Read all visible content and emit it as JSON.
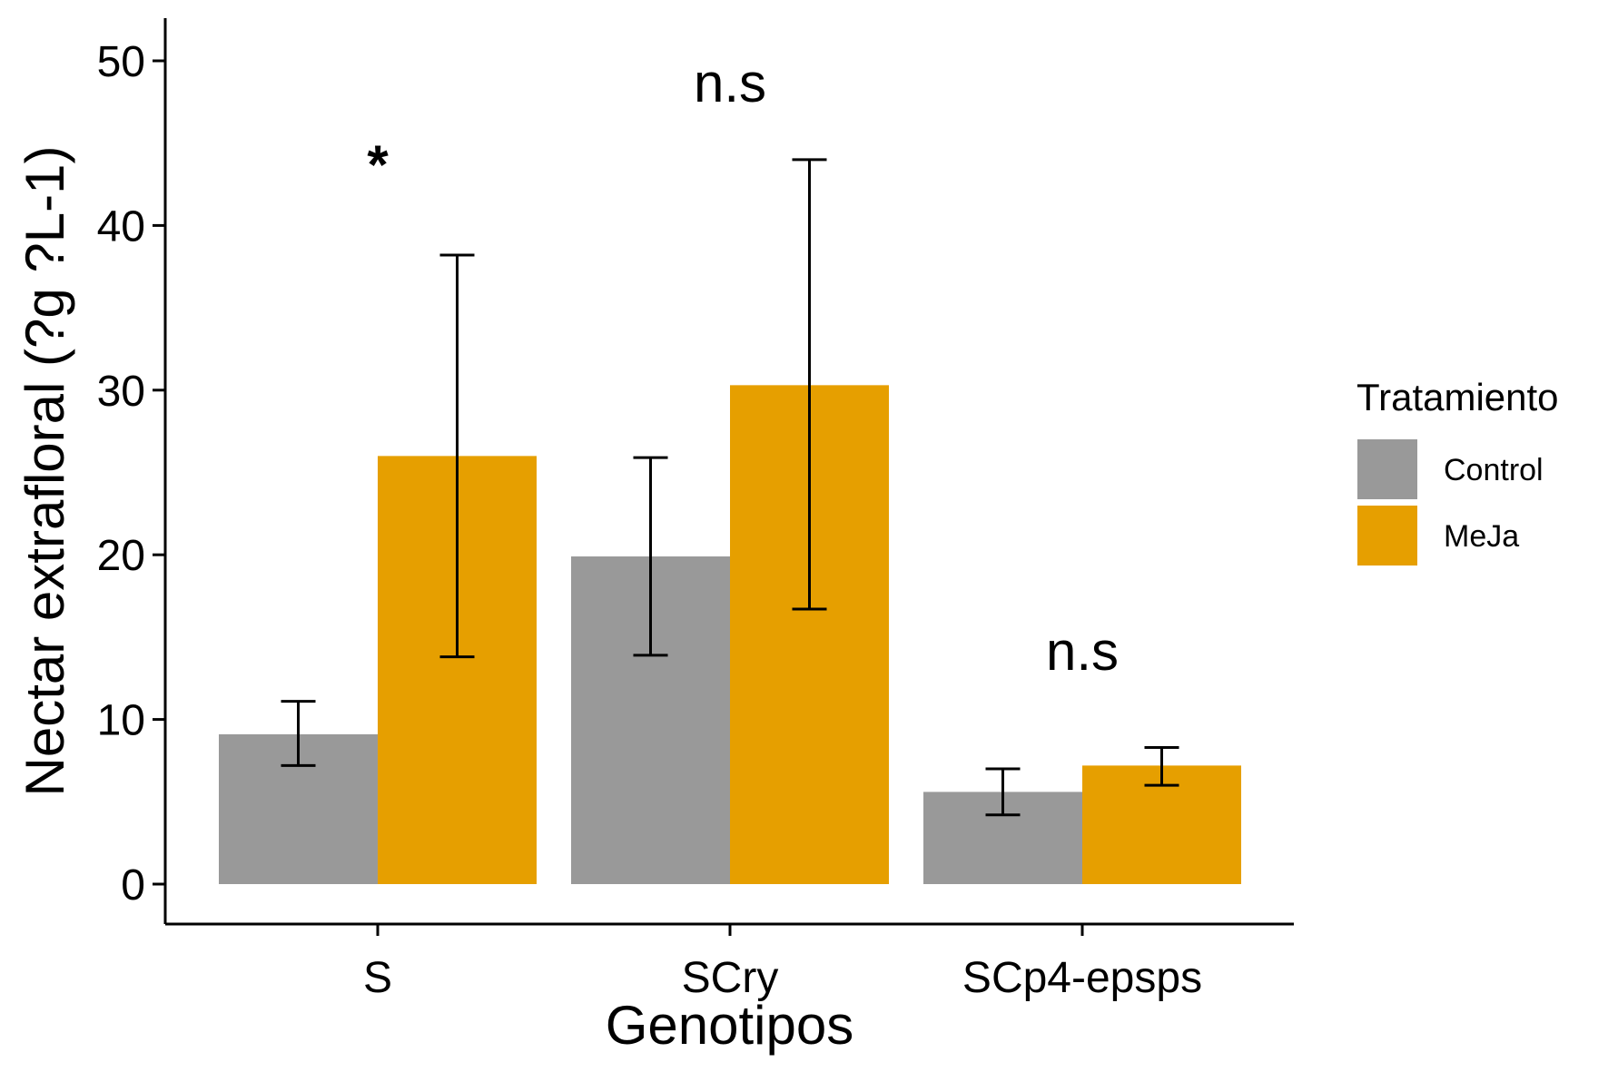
{
  "chart_data": {
    "type": "bar",
    "title": "",
    "xlabel": "Genotipos",
    "ylabel": "Nectar extrafloral (?g ?L-1)",
    "ylim": [
      0,
      52
    ],
    "yticks": [
      0,
      10,
      20,
      30,
      40,
      50
    ],
    "categories": [
      "S",
      "SCry",
      "SCp4-epsps"
    ],
    "series": [
      {
        "name": "Control",
        "color": "#999999",
        "values": [
          9.1,
          19.9,
          5.6
        ],
        "err_low": [
          7.2,
          13.9,
          4.2
        ],
        "err_high": [
          11.1,
          25.9,
          7.0
        ]
      },
      {
        "name": "MeJa",
        "color": "#E69F00",
        "values": [
          26.0,
          30.3,
          7.2
        ],
        "err_low": [
          13.8,
          16.7,
          6.0
        ],
        "err_high": [
          38.2,
          44.0,
          8.3
        ]
      }
    ],
    "annotations": [
      {
        "category": "S",
        "text": "*",
        "y": 44
      },
      {
        "category": "SCry",
        "text": "n.s",
        "y": 48.5
      },
      {
        "category": "SCp4-epsps",
        "text": "n.s",
        "y": 14
      }
    ],
    "legend": {
      "title": "Tratamiento",
      "placement": "right"
    },
    "grid": false
  }
}
